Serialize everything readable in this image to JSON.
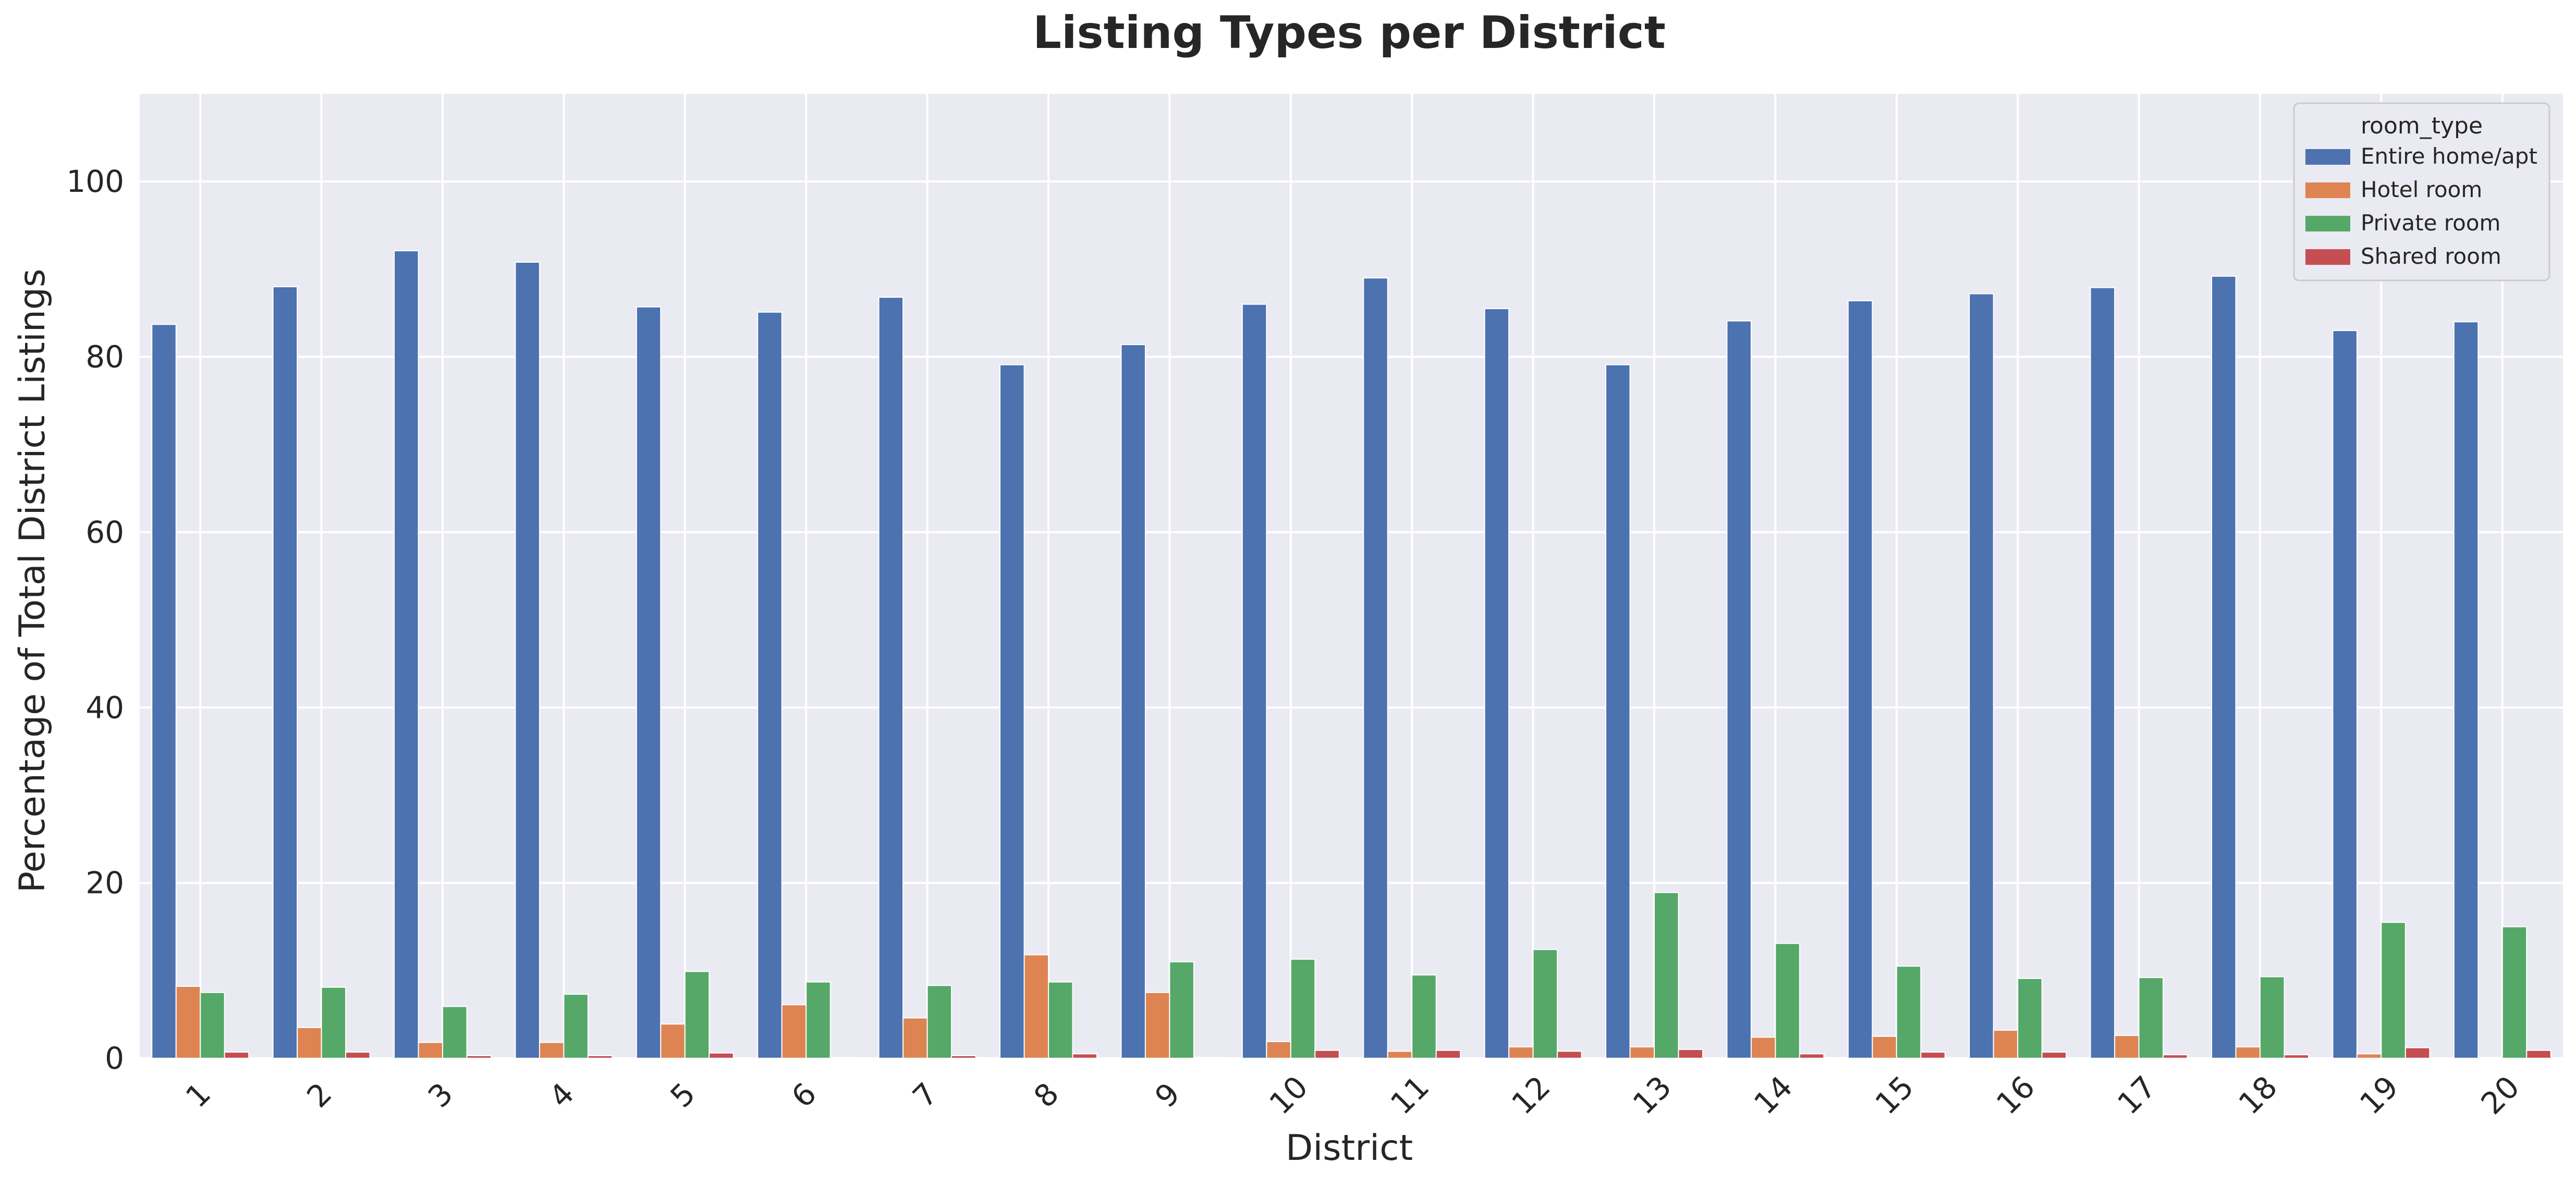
{
  "chart_data": {
    "type": "bar",
    "title": "Listing Types per District",
    "xlabel": "District",
    "ylabel": "Percentage of Total District Listings",
    "categories": [
      "1",
      "2",
      "3",
      "4",
      "5",
      "6",
      "7",
      "8",
      "9",
      "10",
      "11",
      "12",
      "13",
      "14",
      "15",
      "16",
      "17",
      "18",
      "19",
      "20"
    ],
    "yticks": [
      "0",
      "20",
      "40",
      "60",
      "80",
      "100"
    ],
    "ylim": [
      0,
      110
    ],
    "grid": true,
    "legend": {
      "title": "room_type",
      "placement": "top-right"
    },
    "series": [
      {
        "name": "Entire home/apt",
        "color": "#4c72b0",
        "values": [
          83.7,
          88.0,
          92.1,
          90.8,
          85.7,
          85.1,
          86.8,
          79.1,
          81.4,
          86.0,
          89.0,
          85.5,
          79.1,
          84.1,
          86.4,
          87.2,
          87.9,
          89.2,
          83.0,
          84.0
        ]
      },
      {
        "name": "Hotel room",
        "color": "#dd8452",
        "values": [
          8.2,
          3.5,
          1.8,
          1.8,
          3.9,
          6.1,
          4.6,
          11.8,
          7.5,
          1.9,
          0.8,
          1.3,
          1.3,
          2.4,
          2.5,
          3.2,
          2.6,
          1.3,
          0.5,
          0.1
        ]
      },
      {
        "name": "Private room",
        "color": "#55a868",
        "values": [
          7.5,
          8.1,
          5.9,
          7.3,
          9.9,
          8.7,
          8.3,
          8.7,
          11.0,
          11.3,
          9.5,
          12.4,
          18.9,
          13.1,
          10.5,
          9.1,
          9.2,
          9.3,
          15.5,
          15.0
        ]
      },
      {
        "name": "Shared room",
        "color": "#c44e52",
        "values": [
          0.7,
          0.7,
          0.3,
          0.3,
          0.6,
          0.1,
          0.3,
          0.5,
          0.1,
          0.9,
          0.9,
          0.8,
          1.0,
          0.5,
          0.7,
          0.7,
          0.4,
          0.4,
          1.2,
          0.9
        ]
      }
    ],
    "colors": {
      "plot_background": "#eaeaf2",
      "grid": "#ffffff",
      "text": "#262626"
    }
  }
}
